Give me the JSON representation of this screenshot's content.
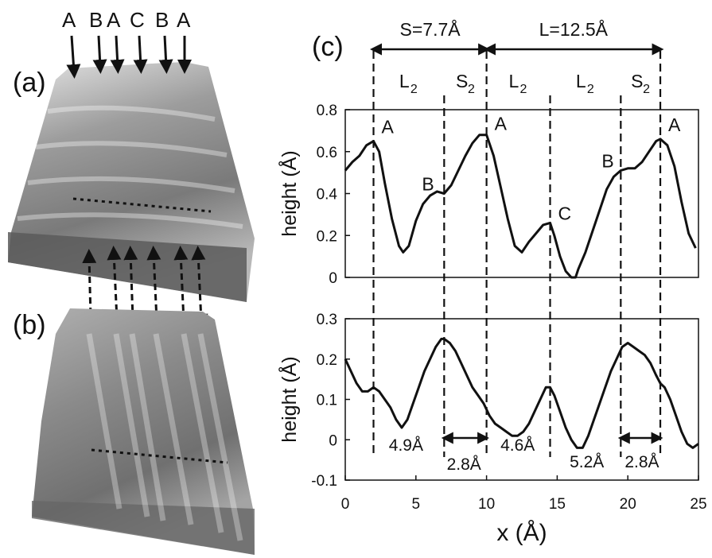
{
  "panel_labels": {
    "a": "(a)",
    "b": "(b)",
    "c": "(c)"
  },
  "site_labels_top": [
    "A",
    "B",
    "A",
    "C",
    "B",
    "A"
  ],
  "spacing_annotations": {
    "short": "S=7.7Å",
    "long": "L=12.5Å"
  },
  "segment_labels": [
    {
      "main": "L",
      "sub": "2"
    },
    {
      "main": "S",
      "sub": "2"
    },
    {
      "main": "L",
      "sub": "2"
    },
    {
      "main": "L",
      "sub": "2"
    },
    {
      "main": "S",
      "sub": "2"
    }
  ],
  "gap_labels": [
    "4.9Å",
    "2.8Å",
    "4.6Å",
    "5.2Å",
    "2.8Å"
  ],
  "guide_lines_x": [
    2.0,
    7.0,
    10.0,
    14.5,
    19.5,
    22.3
  ],
  "colors": {
    "curve": "#111111",
    "surface_light": "#d8d8d8",
    "surface_dark": "#5a5a5a",
    "background": "#ffffff"
  },
  "chart_data": [
    {
      "type": "line",
      "title": "",
      "xlabel": "x (Å)",
      "ylabel": "height (Å)",
      "xlim": [
        0,
        25
      ],
      "ylim": [
        0,
        0.8
      ],
      "yticks": [
        "0",
        "0.2",
        "0.4",
        "0.6",
        "0.8"
      ],
      "xticks": [],
      "grid": false,
      "series": [
        {
          "x": [
            0,
            0.5,
            1,
            1.5,
            2,
            2.4,
            2.8,
            3.3,
            3.8,
            4.1,
            4.5,
            5,
            5.5,
            6,
            6.5,
            7,
            7.5,
            8,
            8.5,
            9,
            9.5,
            10,
            10.5,
            11,
            11.5,
            12,
            12.5,
            13,
            13.5,
            14,
            14.5,
            14.8,
            15.2,
            15.6,
            16,
            16.3,
            16.5,
            17,
            17.5,
            18,
            18.5,
            19,
            19.5,
            20,
            20.5,
            21,
            21.5,
            22,
            22.3,
            22.8,
            23.3,
            23.8,
            24.3,
            24.8
          ],
          "y": [
            0.51,
            0.55,
            0.58,
            0.63,
            0.65,
            0.6,
            0.45,
            0.28,
            0.15,
            0.12,
            0.15,
            0.27,
            0.35,
            0.39,
            0.41,
            0.4,
            0.44,
            0.51,
            0.58,
            0.64,
            0.68,
            0.68,
            0.58,
            0.43,
            0.28,
            0.15,
            0.12,
            0.17,
            0.21,
            0.25,
            0.26,
            0.2,
            0.1,
            0.03,
            0.0,
            0.0,
            0.04,
            0.12,
            0.22,
            0.32,
            0.42,
            0.48,
            0.51,
            0.52,
            0.52,
            0.55,
            0.6,
            0.65,
            0.66,
            0.63,
            0.53,
            0.36,
            0.21,
            0.14
          ]
        }
      ],
      "point_labels": [
        {
          "x": 2.0,
          "y": 0.65,
          "text": "A"
        },
        {
          "x": 7.0,
          "y": 0.4,
          "text": "B"
        },
        {
          "x": 10.0,
          "y": 0.68,
          "text": "A"
        },
        {
          "x": 14.5,
          "y": 0.26,
          "text": "C"
        },
        {
          "x": 19.5,
          "y": 0.51,
          "text": "B"
        },
        {
          "x": 22.3,
          "y": 0.66,
          "text": "A"
        }
      ]
    },
    {
      "type": "line",
      "title": "",
      "xlabel": "x (Å)",
      "ylabel": "height (Å)",
      "xlim": [
        0,
        25
      ],
      "ylim": [
        -0.1,
        0.3
      ],
      "yticks": [
        "-0.1",
        "0",
        "0.1",
        "0.2",
        "0.3"
      ],
      "xticks": [
        "0",
        "5",
        "10",
        "15",
        "20",
        "25"
      ],
      "grid": false,
      "series": [
        {
          "x": [
            0,
            0.4,
            0.8,
            1.2,
            1.6,
            2.0,
            2.4,
            2.8,
            3.2,
            3.6,
            4.0,
            4.4,
            4.8,
            5.2,
            5.6,
            6.0,
            6.4,
            6.8,
            7.0,
            7.4,
            7.8,
            8.2,
            8.6,
            9.0,
            9.4,
            9.8,
            10.2,
            10.6,
            11.0,
            11.4,
            11.8,
            12.2,
            12.6,
            13.0,
            13.4,
            13.8,
            14.2,
            14.5,
            14.8,
            15.2,
            15.6,
            16.0,
            16.4,
            16.8,
            17.2,
            17.6,
            18.0,
            18.4,
            18.8,
            19.2,
            19.6,
            20.0,
            20.4,
            20.8,
            21.2,
            21.6,
            22.0,
            22.3,
            22.6,
            23.0,
            23.4,
            23.8,
            24.2,
            24.6,
            25.0
          ],
          "y": [
            0.2,
            0.17,
            0.14,
            0.12,
            0.12,
            0.13,
            0.12,
            0.1,
            0.08,
            0.05,
            0.03,
            0.05,
            0.09,
            0.13,
            0.17,
            0.2,
            0.23,
            0.25,
            0.25,
            0.24,
            0.22,
            0.19,
            0.16,
            0.13,
            0.11,
            0.09,
            0.06,
            0.04,
            0.03,
            0.02,
            0.01,
            0.01,
            0.02,
            0.04,
            0.07,
            0.1,
            0.13,
            0.13,
            0.11,
            0.07,
            0.03,
            0.0,
            -0.02,
            -0.02,
            0.01,
            0.05,
            0.09,
            0.13,
            0.17,
            0.2,
            0.23,
            0.24,
            0.23,
            0.22,
            0.21,
            0.19,
            0.16,
            0.14,
            0.13,
            0.1,
            0.06,
            0.02,
            -0.01,
            -0.02,
            -0.01
          ]
        }
      ]
    }
  ]
}
